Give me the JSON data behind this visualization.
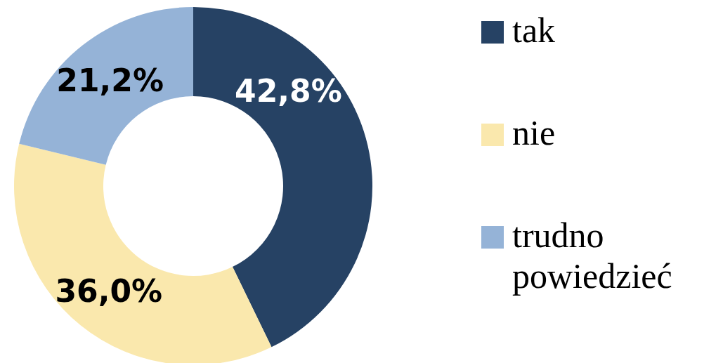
{
  "chart_data": {
    "type": "donut",
    "categories": [
      "tak",
      "nie",
      "trudno powiedzieć"
    ],
    "values": [
      42.8,
      36.0,
      21.2
    ],
    "colors": [
      "#264264",
      "#fae8ad",
      "#95b3d7"
    ],
    "value_labels": [
      "42,8%",
      "36,0%",
      "21,2%"
    ],
    "legend": "right"
  }
}
